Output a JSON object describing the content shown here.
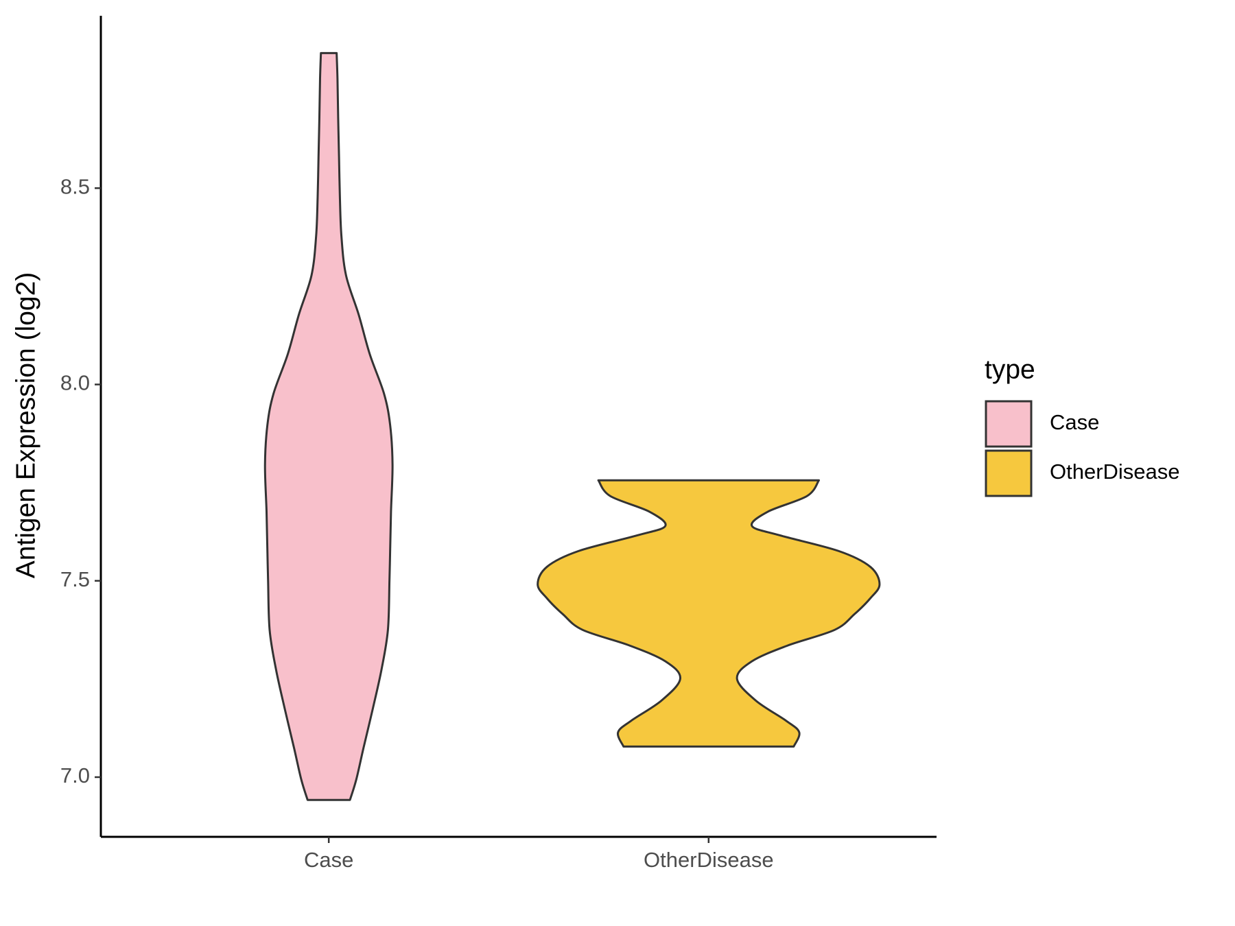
{
  "chart_data": {
    "type": "violin",
    "y_label": "Antigen Expression (log2)",
    "categories": [
      "Case",
      "OtherDisease"
    ],
    "legend_title": "type",
    "legend": "right",
    "ylim": [
      6.848,
      8.939
    ],
    "yticks": [
      {
        "value": 7,
        "label": "7.0"
      },
      7.5,
      {
        "value": 8,
        "label": "8.0"
      },
      8.5
    ],
    "series": [
      {
        "name": "Case",
        "color": "#f8c0cb",
        "y": [
          6.942,
          6.994,
          7.074,
          7.175,
          7.275,
          7.375,
          7.5,
          7.576,
          7.676,
          7.796,
          7.897,
          7.977,
          8.077,
          8.178,
          8.278,
          8.378,
          8.478,
          8.579,
          8.679,
          8.779,
          8.844
        ],
        "widths": [
          0.124,
          0.161,
          0.203,
          0.258,
          0.309,
          0.346,
          0.355,
          0.359,
          0.364,
          0.373,
          0.359,
          0.323,
          0.24,
          0.175,
          0.101,
          0.074,
          0.065,
          0.06,
          0.055,
          0.051,
          0.046
        ]
      },
      {
        "name": "OtherDisease",
        "color": "#f6c83e",
        "y": [
          7.078,
          7.114,
          7.144,
          7.195,
          7.251,
          7.295,
          7.335,
          7.375,
          7.415,
          7.455,
          7.491,
          7.536,
          7.576,
          7.616,
          7.64,
          7.676,
          7.716,
          7.756
        ],
        "widths": [
          0.498,
          0.53,
          0.452,
          0.276,
          0.166,
          0.253,
          0.461,
          0.737,
          0.853,
          0.945,
          1,
          0.945,
          0.76,
          0.415,
          0.253,
          0.346,
          0.576,
          0.645
        ]
      }
    ]
  }
}
